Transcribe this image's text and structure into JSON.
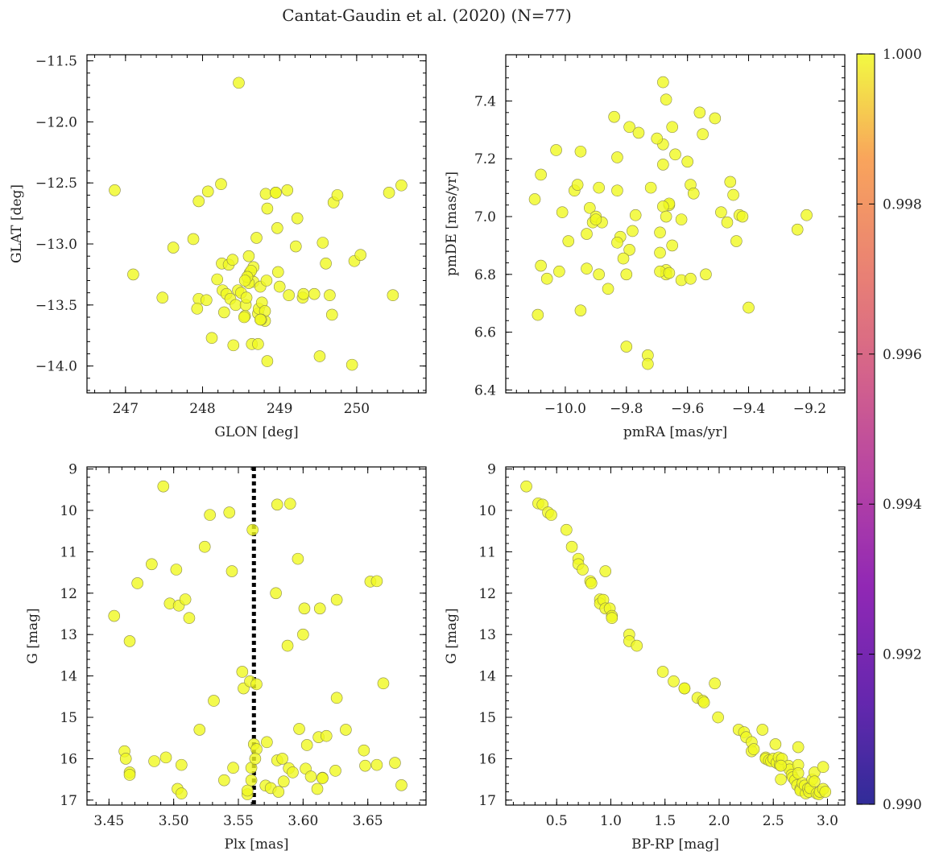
{
  "title": "Cantat-Gaudin et al. (2020) (N=77)",
  "colorbar": {
    "colormap": "plasma",
    "ticks": [
      "0.990",
      "0.992",
      "0.994",
      "0.996",
      "0.998",
      "1.000"
    ],
    "range": [
      0.99,
      1.0
    ],
    "point_color": "#f0f921"
  },
  "chart_data": [
    {
      "type": "scatter",
      "id": "glon-glat",
      "xlabel": "GLON [deg]",
      "ylabel": "GLAT [deg]",
      "xlim": [
        246.5,
        250.9
      ],
      "ylim": [
        -14.22,
        -11.45
      ],
      "xticks": [
        247,
        248,
        249,
        250
      ],
      "xtick_labels": [
        "247",
        "248",
        "249",
        "250"
      ],
      "yticks": [
        -11.5,
        -12.0,
        -12.5,
        -13.0,
        -13.5,
        -14.0
      ],
      "ytick_labels": [
        "−11.5",
        "−12.0",
        "−12.5",
        "−13.0",
        "−13.5",
        "−14.0"
      ],
      "x": [
        248.47,
        246.86,
        247.1,
        247.48,
        247.62,
        247.88,
        247.95,
        247.93,
        247.95,
        248.05,
        248.07,
        248.12,
        248.19,
        248.24,
        248.26,
        248.28,
        248.25,
        248.31,
        248.34,
        248.36,
        248.39,
        248.4,
        248.43,
        248.46,
        248.5,
        248.55,
        248.56,
        248.57,
        248.6,
        248.61,
        248.64,
        248.66,
        248.7,
        248.72,
        248.73,
        248.75,
        248.77,
        248.81,
        248.81,
        248.83,
        248.84,
        248.84,
        248.82,
        248.72,
        248.66,
        248.63,
        248.6,
        248.58,
        248.55,
        248.54,
        248.76,
        248.95,
        249.0,
        249.1,
        249.12,
        249.21,
        249.23,
        249.3,
        249.31,
        249.45,
        249.52,
        249.56,
        249.6,
        249.65,
        249.68,
        249.7,
        249.75,
        249.94,
        249.97,
        250.05,
        250.42,
        250.47,
        250.58,
        248.97,
        248.98,
        248.75,
        248.95
      ],
      "y": [
        -11.68,
        -12.56,
        -13.25,
        -13.44,
        -13.03,
        -12.96,
        -13.45,
        -13.53,
        -12.65,
        -13.46,
        -12.57,
        -13.77,
        -13.29,
        -12.51,
        -13.38,
        -13.56,
        -13.16,
        -13.41,
        -13.17,
        -13.45,
        -13.13,
        -13.83,
        -13.5,
        -13.38,
        -13.4,
        -13.59,
        -13.5,
        -13.44,
        -13.1,
        -13.24,
        -13.82,
        -13.31,
        -12.95,
        -13.57,
        -13.53,
        -13.35,
        -13.48,
        -13.63,
        -13.55,
        -13.3,
        -13.96,
        -12.71,
        -12.59,
        -13.82,
        -13.19,
        -13.22,
        -13.32,
        -13.27,
        -13.3,
        -13.6,
        -13.62,
        -12.58,
        -13.35,
        -12.56,
        -13.42,
        -13.02,
        -12.79,
        -13.44,
        -13.41,
        -13.41,
        -13.92,
        -12.99,
        -13.16,
        -13.42,
        -13.58,
        -12.66,
        -12.6,
        -13.99,
        -13.14,
        -13.09,
        -12.58,
        -13.42,
        -12.52,
        -12.87,
        -13.23,
        -13.62,
        -12.58
      ]
    },
    {
      "type": "scatter",
      "id": "pmra-pmde",
      "xlabel": "pmRA [mas/yr]",
      "ylabel": "pmDE [mas/yr]",
      "xlim": [
        -10.195,
        -9.085
      ],
      "ylim": [
        6.39,
        7.56
      ],
      "xticks": [
        -10.0,
        -9.8,
        -9.6,
        -9.4,
        -9.2
      ],
      "xtick_labels": [
        "−10.0",
        "−9.8",
        "−9.6",
        "−9.4",
        "−9.2"
      ],
      "yticks": [
        6.4,
        6.6,
        6.8,
        7.0,
        7.2,
        7.4
      ],
      "ytick_labels": [
        "6.4",
        "6.6",
        "6.8",
        "7.0",
        "7.2",
        "7.4"
      ],
      "x": [
        -10.1,
        -10.08,
        -10.03,
        -10.01,
        -10.08,
        -10.06,
        -10.02,
        -9.99,
        -9.97,
        -9.96,
        -9.95,
        -9.95,
        -9.93,
        -9.92,
        -9.93,
        -9.91,
        -9.9,
        -9.89,
        -9.89,
        -9.88,
        -9.86,
        -9.84,
        -9.83,
        -9.83,
        -9.82,
        -9.8,
        -9.8,
        -9.79,
        -9.78,
        -9.77,
        -9.76,
        -9.73,
        -9.73,
        -9.72,
        -9.69,
        -9.68,
        -9.68,
        -9.67,
        -9.67,
        -9.66,
        -9.66,
        -9.65,
        -9.65,
        -9.64,
        -9.62,
        -9.6,
        -9.59,
        -9.59,
        -9.58,
        -9.56,
        -9.55,
        -9.54,
        -9.51,
        -9.49,
        -9.47,
        -9.46,
        -9.45,
        -9.44,
        -9.43,
        -9.42,
        -9.4,
        -9.24,
        -9.21,
        -10.09,
        -9.68,
        -9.67,
        -9.7,
        -9.69,
        -9.66,
        -9.62,
        -9.83,
        -9.79,
        -9.81,
        -9.69,
        -9.68,
        -9.67,
        -9.9
      ],
      "y": [
        7.06,
        7.145,
        7.23,
        7.015,
        6.83,
        6.785,
        6.81,
        6.915,
        7.09,
        7.11,
        7.225,
        6.675,
        6.94,
        7.03,
        6.82,
        6.98,
        7.0,
        6.8,
        7.1,
        6.98,
        6.75,
        7.345,
        7.205,
        7.09,
        6.93,
        6.55,
        6.8,
        7.31,
        6.95,
        7.005,
        7.29,
        6.52,
        6.49,
        7.1,
        6.875,
        7.18,
        7.25,
        6.815,
        6.8,
        7.04,
        7.045,
        6.9,
        7.31,
        7.215,
        6.78,
        7.19,
        6.785,
        7.11,
        7.08,
        7.36,
        7.285,
        6.8,
        7.34,
        7.015,
        6.98,
        7.12,
        7.075,
        6.915,
        7.005,
        7.0,
        6.685,
        6.955,
        7.005,
        6.66,
        7.465,
        7.405,
        7.27,
        6.81,
        6.805,
        6.99,
        6.91,
        6.885,
        6.855,
        6.945,
        7.035,
        7.0,
        6.99
      ]
    },
    {
      "type": "scatter",
      "id": "plx-g",
      "xlabel": "Plx [mas]",
      "ylabel": "G [mag]",
      "xlim": [
        3.433,
        3.695
      ],
      "ylim": [
        17.12,
        8.95
      ],
      "y_inverted": true,
      "xticks": [
        3.45,
        3.5,
        3.55,
        3.6,
        3.65
      ],
      "xtick_labels": [
        "3.45",
        "3.50",
        "3.55",
        "3.60",
        "3.65"
      ],
      "yticks": [
        9,
        10,
        11,
        12,
        13,
        14,
        15,
        16,
        17
      ],
      "ytick_labels": [
        "9",
        "10",
        "11",
        "12",
        "13",
        "14",
        "15",
        "16",
        "17"
      ],
      "vline": 3.562,
      "x": [
        3.492,
        3.528,
        3.543,
        3.561,
        3.58,
        3.59,
        3.524,
        3.483,
        3.472,
        3.502,
        3.545,
        3.454,
        3.497,
        3.504,
        3.509,
        3.512,
        3.466,
        3.52,
        3.531,
        3.553,
        3.554,
        3.559,
        3.579,
        3.588,
        3.596,
        3.6,
        3.601,
        3.613,
        3.626,
        3.652,
        3.657,
        3.662,
        3.564,
        3.572,
        3.58,
        3.584,
        3.597,
        3.603,
        3.612,
        3.618,
        3.626,
        3.633,
        3.647,
        3.671,
        3.462,
        3.463,
        3.466,
        3.466,
        3.485,
        3.494,
        3.506,
        3.503,
        3.506,
        3.539,
        3.546,
        3.557,
        3.557,
        3.56,
        3.562,
        3.564,
        3.56,
        3.563,
        3.571,
        3.575,
        3.581,
        3.585,
        3.589,
        3.592,
        3.602,
        3.606,
        3.611,
        3.615,
        3.615,
        3.625,
        3.648,
        3.657,
        3.676
      ],
      "y": [
        9.42,
        10.11,
        10.05,
        10.47,
        9.86,
        9.84,
        10.88,
        11.3,
        11.76,
        11.43,
        11.47,
        12.55,
        12.25,
        12.3,
        12.15,
        12.6,
        13.16,
        15.3,
        14.6,
        13.9,
        14.3,
        14.13,
        12.0,
        13.27,
        11.17,
        13.0,
        12.37,
        12.37,
        12.16,
        11.72,
        11.71,
        14.18,
        14.2,
        15.6,
        16.04,
        16.0,
        15.28,
        15.67,
        15.48,
        15.45,
        14.53,
        15.3,
        15.8,
        16.1,
        15.82,
        16.0,
        16.33,
        16.39,
        16.06,
        15.97,
        16.15,
        16.73,
        16.84,
        16.52,
        16.22,
        16.86,
        16.77,
        16.52,
        15.65,
        15.77,
        16.22,
        16.0,
        16.65,
        16.71,
        16.8,
        16.55,
        16.23,
        16.33,
        16.24,
        16.43,
        16.73,
        16.46,
        16.47,
        16.29,
        16.17,
        16.15,
        16.64
      ]
    },
    {
      "type": "scatter",
      "id": "bprp-g",
      "xlabel": "BP-RP [mag]",
      "ylabel": "G [mag]",
      "xlim": [
        0.03,
        3.16
      ],
      "ylim": [
        17.12,
        8.95
      ],
      "y_inverted": true,
      "xticks": [
        0.5,
        1.0,
        1.5,
        2.0,
        2.5,
        3.0
      ],
      "xtick_labels": [
        "0.5",
        "1.0",
        "1.5",
        "2.0",
        "2.5",
        "3.0"
      ],
      "yticks": [
        9,
        10,
        11,
        12,
        13,
        14,
        15,
        16,
        17
      ],
      "ytick_labels": [
        "9",
        "10",
        "11",
        "12",
        "13",
        "14",
        "15",
        "16",
        "17"
      ],
      "x": [
        0.22,
        0.33,
        0.37,
        0.42,
        0.45,
        0.59,
        0.64,
        0.7,
        0.7,
        0.74,
        0.81,
        0.82,
        0.9,
        0.9,
        0.93,
        0.95,
        0.95,
        0.99,
        1.01,
        1.01,
        1.17,
        1.17,
        1.24,
        1.48,
        1.58,
        1.68,
        1.68,
        1.8,
        1.85,
        1.86,
        1.96,
        1.99,
        2.18,
        2.23,
        2.25,
        2.3,
        2.3,
        2.32,
        2.4,
        2.43,
        2.43,
        2.46,
        2.48,
        2.5,
        2.52,
        2.53,
        2.55,
        2.56,
        2.57,
        2.58,
        2.64,
        2.65,
        2.67,
        2.68,
        2.7,
        2.72,
        2.73,
        2.73,
        2.73,
        2.75,
        2.75,
        2.77,
        2.79,
        2.8,
        2.82,
        2.83,
        2.84,
        2.86,
        2.88,
        2.88,
        2.9,
        2.92,
        2.93,
        2.96,
        2.96,
        2.98,
        2.57
      ],
      "y": [
        9.42,
        9.83,
        9.86,
        10.05,
        10.11,
        10.47,
        10.88,
        11.17,
        11.3,
        11.43,
        11.71,
        11.76,
        12.15,
        12.25,
        12.16,
        11.47,
        12.37,
        12.37,
        12.55,
        12.6,
        13.0,
        13.16,
        13.27,
        13.9,
        14.13,
        14.3,
        14.3,
        14.53,
        14.6,
        14.64,
        14.18,
        15.0,
        15.3,
        15.36,
        15.48,
        15.6,
        15.82,
        15.77,
        15.3,
        15.97,
        16.0,
        16.04,
        16.06,
        16.0,
        15.65,
        16.1,
        15.97,
        16.15,
        16.5,
        16.0,
        16.17,
        16.26,
        16.39,
        16.45,
        16.52,
        16.64,
        16.15,
        16.35,
        15.72,
        16.73,
        16.77,
        16.59,
        16.65,
        16.84,
        16.72,
        16.8,
        16.71,
        16.5,
        16.33,
        16.55,
        16.84,
        16.86,
        16.8,
        16.73,
        16.2,
        16.8,
        16.17
      ]
    }
  ]
}
